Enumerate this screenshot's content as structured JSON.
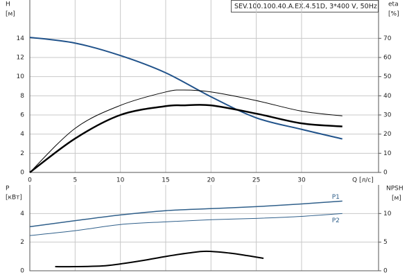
{
  "chart_data": [
    {
      "type": "line",
      "title": "SEV.100.100.40.A.EX.4.51D, 3*400 V, 50Hz",
      "y_label": "H",
      "y_unit": "[м]",
      "y2_label": "eta",
      "y2_unit": "[%]",
      "x_label": "Q [л/с]",
      "xlim": [
        0,
        38.5
      ],
      "xticks": [
        0,
        5,
        10,
        15,
        20,
        25,
        30
      ],
      "ylim": [
        0,
        18
      ],
      "yticks": [
        0,
        2,
        4,
        6,
        8,
        10,
        12,
        14
      ],
      "y2lim": [
        0,
        90
      ],
      "y2ticks": [
        0,
        10,
        20,
        30,
        40,
        50,
        60,
        70
      ],
      "grid": true,
      "series": [
        {
          "color": "#20528a",
          "x": [
            0,
            5,
            10,
            15,
            20,
            25,
            30,
            34.5
          ],
          "values": [
            14.1,
            13.5,
            12.2,
            10.4,
            7.9,
            5.7,
            4.5,
            3.5
          ]
        },
        {
          "color": "#000000",
          "axis": "y2",
          "x": [
            0,
            5,
            10,
            15,
            17,
            20,
            25,
            30,
            34.5
          ],
          "values": [
            0,
            23,
            35,
            42,
            43,
            42,
            37.5,
            32,
            29.5
          ]
        },
        {
          "color": "#000000",
          "axis": "y2",
          "x": [
            0,
            5,
            10,
            15,
            17,
            20,
            25,
            30,
            34.5
          ],
          "values": [
            0,
            17.7,
            30,
            34.6,
            35,
            35,
            30.7,
            25.6,
            24
          ]
        }
      ]
    },
    {
      "type": "line",
      "y_label": "P",
      "y_unit": "[кВт]",
      "y2_label": "NPSH",
      "y2_unit": "[м]",
      "xlim": [
        0,
        38.5
      ],
      "ylim": [
        0,
        6
      ],
      "yticks": [
        0,
        2,
        4
      ],
      "y2lim": [
        0,
        15
      ],
      "y2ticks": [
        0,
        5,
        10
      ],
      "grid": true,
      "series": [
        {
          "name": "P1",
          "color": "#2f5f8a",
          "x": [
            0,
            5,
            10,
            15,
            20,
            25,
            30,
            34.5
          ],
          "values": [
            3.08,
            3.5,
            3.9,
            4.2,
            4.34,
            4.48,
            4.67,
            4.87
          ]
        },
        {
          "name": "P2",
          "color": "#2f5f8a",
          "x": [
            0,
            5,
            10,
            15,
            20,
            25,
            30,
            34.5
          ],
          "values": [
            2.46,
            2.8,
            3.23,
            3.42,
            3.57,
            3.66,
            3.8,
            4.0
          ]
        },
        {
          "color": "#000000",
          "axis": "y2",
          "x": [
            2.8,
            5,
            8,
            10,
            12.5,
            15,
            17.5,
            19.5,
            22,
            24,
            25.8
          ],
          "values": [
            0.72,
            0.72,
            0.84,
            1.2,
            1.8,
            2.5,
            3.1,
            3.4,
            3.1,
            2.65,
            2.17
          ]
        }
      ]
    }
  ]
}
